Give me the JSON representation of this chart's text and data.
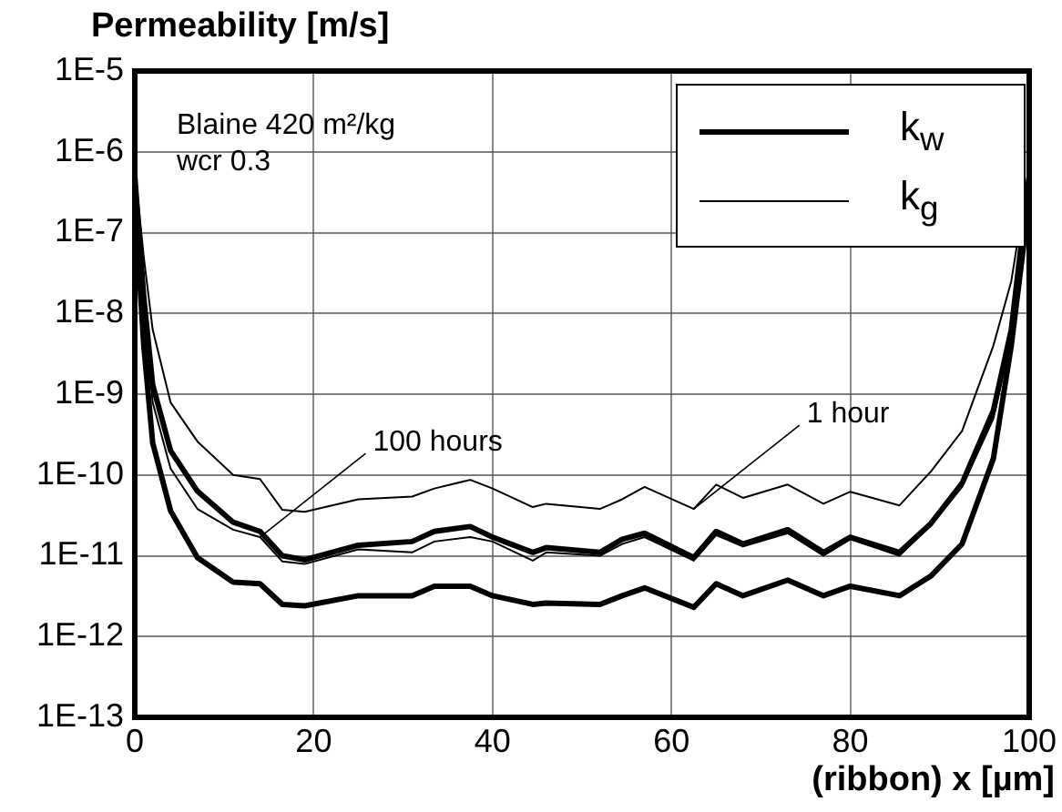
{
  "chart_data": {
    "type": "line",
    "title": "Permeability [m/s]",
    "xlabel": "(ribbon) x [µm]",
    "x": [
      0,
      1,
      2,
      4,
      7,
      11,
      14,
      16.5,
      19,
      25,
      31,
      33.5,
      37.5,
      40,
      44.5,
      46,
      52,
      54.5,
      57,
      62.5,
      65,
      68,
      73,
      77,
      80,
      85.5,
      89,
      92.5,
      96,
      98,
      100
    ],
    "series": [
      {
        "name": "k$_{w}$",
        "color": "#000000",
        "values": [
          5e-07,
          1.6e-08,
          1.3e-09,
          2e-10,
          6.3e-11,
          2.6e-11,
          2e-11,
          1e-11,
          8.9e-12,
          1.35e-11,
          1.5e-11,
          2e-11,
          2.3e-11,
          1.7e-11,
          1.1e-11,
          1.26e-11,
          1.1e-11,
          1.6e-11,
          1.9e-11,
          9.5e-12,
          2e-11,
          1.4e-11,
          2.1e-11,
          1.1e-11,
          1.7e-11,
          1.1e-11,
          2.5e-11,
          7.9e-11,
          6.3e-10,
          6.3e-09,
          5e-07
        ]
      },
      {
        "name": "k$_{g}$",
        "color": "#000000",
        "values": [
          6.3e-07,
          5e-08,
          6.3e-09,
          7.9e-10,
          2.6e-10,
          1e-10,
          8.9e-11,
          3.7e-11,
          3.5e-11,
          5e-11,
          5.4e-11,
          6.8e-11,
          8.7e-11,
          6.8e-11,
          4e-11,
          4.4e-11,
          3.8e-11,
          5e-11,
          7.1e-11,
          3.8e-11,
          7.6e-11,
          5.2e-11,
          7.6e-11,
          4.4e-11,
          6.2e-11,
          4.2e-11,
          1.1e-10,
          3.5e-10,
          4e-09,
          2.5e-08,
          6.3e-07
        ]
      },
      {
        "color": "#000000",
        "values": [
          2.5e-07,
          4e-09,
          2.5e-10,
          3.6e-11,
          9.5e-12,
          4.7e-12,
          4.5e-12,
          2.5e-12,
          2.4e-12,
          3.2e-12,
          3.2e-12,
          4.2e-12,
          4.2e-12,
          3.2e-12,
          2.5e-12,
          2.6e-12,
          2.5e-12,
          3.2e-12,
          4e-12,
          2.3e-12,
          4.5e-12,
          3.2e-12,
          5e-12,
          3.2e-12,
          4.2e-12,
          3.2e-12,
          5.6e-12,
          1.4e-11,
          1.6e-10,
          4e-09,
          2.5e-07
        ]
      },
      {
        "color": "#000000",
        "values": [
          3.2e-07,
          1e-08,
          7.9e-10,
          1.2e-10,
          3.8e-11,
          2.1e-11,
          1.7e-11,
          8.5e-12,
          7.9e-12,
          1.2e-11,
          1.1e-11,
          1.5e-11,
          1.7e-11,
          1.5e-11,
          8.7e-12,
          1.1e-11,
          1e-11,
          1.4e-11,
          1.7e-11,
          8.7e-12,
          1.8e-11,
          1.3e-11,
          1.9e-11,
          1e-11,
          1.6e-11,
          1e-11,
          2.4e-11,
          7.1e-11,
          5e-10,
          5e-09,
          4e-07
        ]
      }
    ],
    "log": "y",
    "xlim": [
      0,
      100
    ],
    "xticks": [
      0,
      20,
      40,
      60,
      80,
      100
    ],
    "ylim": [
      1e-13,
      1e-05
    ],
    "yticks": [
      {
        "value": 1e-13,
        "label": "1E-13"
      },
      {
        "value": 1e-12,
        "label": "1E-12"
      },
      {
        "value": 1e-11,
        "label": "1E-11"
      },
      {
        "value": 1e-10,
        "label": "1E-10"
      },
      {
        "value": 1e-09,
        "label": "1E-9"
      },
      {
        "value": 1e-08,
        "label": "1E-8"
      },
      {
        "value": 1e-07,
        "label": "1E-7"
      },
      {
        "value": 1e-06,
        "label": "1E-6"
      },
      {
        "value": 1e-05,
        "label": "1E-5"
      }
    ],
    "grid": true,
    "legend": "top right",
    "marker": "none",
    "line_style": "solid",
    "annotations": [
      "Blaine 420 m²/kg",
      "wcr 0.3",
      {
        "text": "100 hours",
        "x": 14,
        "y": 1.7e-11
      },
      {
        "text": "1 hour",
        "x": 62.5,
        "y": 3.8e-11
      }
    ]
  }
}
